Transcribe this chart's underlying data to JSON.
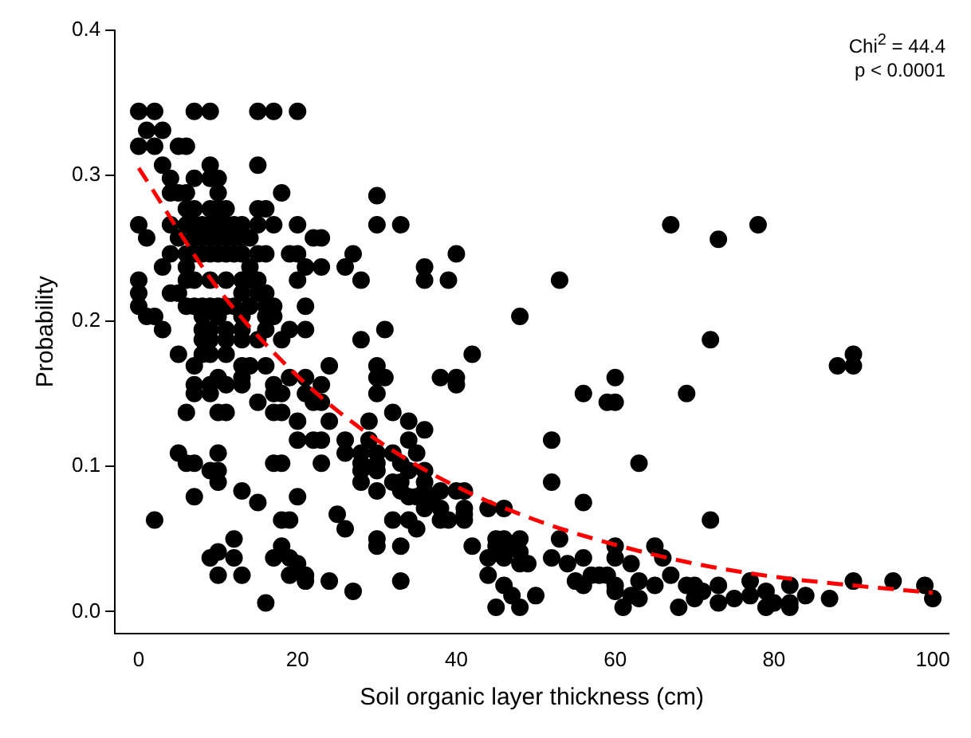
{
  "chart_data": {
    "type": "scatter",
    "xlabel": "Soil organic layer thickness (cm)",
    "ylabel": "Probability",
    "annotations": [
      "Chi$^{2}$ = 44.4",
      "p < 0.0001"
    ],
    "xlim": [
      -3,
      102
    ],
    "ylim": [
      -0.015,
      0.4
    ],
    "xticks": [
      0,
      20,
      40,
      60,
      80,
      100
    ],
    "yticks": [
      {
        "value": 0,
        "label": "0.0"
      },
      0.1,
      0.2,
      0.3,
      0.4
    ],
    "grid": false,
    "legend": false,
    "series": [
      {
        "type": "scatter",
        "color": "#000000",
        "marker": "circle",
        "x": [
          0,
          2,
          7,
          9,
          15,
          17,
          20,
          1,
          3,
          0,
          2,
          5,
          6,
          3,
          9,
          15,
          4,
          7,
          9,
          10,
          4,
          5,
          6,
          10,
          18,
          30,
          6,
          7,
          9,
          10,
          11,
          15,
          16,
          0,
          4,
          6,
          7,
          8,
          9,
          10,
          11,
          12,
          13,
          15,
          17,
          20,
          30,
          33,
          67,
          78,
          1,
          5,
          7,
          8,
          9,
          10,
          11,
          12,
          13,
          14,
          22,
          23,
          73,
          4,
          6,
          7,
          8,
          9,
          10,
          11,
          12,
          13,
          15,
          16,
          19,
          20,
          27,
          40,
          3,
          6,
          14,
          21,
          23,
          26,
          36,
          0,
          6,
          7,
          9,
          11,
          13,
          14,
          15,
          20,
          28,
          36,
          39,
          53,
          0,
          4,
          5,
          13,
          15,
          16,
          0,
          6,
          7,
          8,
          9,
          10,
          11,
          12,
          14,
          16,
          17,
          21,
          1,
          2,
          8,
          10,
          13,
          16,
          17,
          48,
          3,
          8,
          9,
          11,
          13,
          16,
          19,
          21,
          31,
          8,
          9,
          11,
          13,
          15,
          18,
          28,
          72,
          5,
          8,
          9,
          11,
          42,
          90,
          7,
          13,
          14,
          16,
          24,
          30,
          88,
          90,
          10,
          13,
          19,
          21,
          30,
          31,
          38,
          40,
          60,
          7,
          9,
          11,
          13,
          17,
          23,
          40,
          7,
          9,
          17,
          18,
          21,
          30,
          56,
          69,
          15,
          22,
          23,
          59,
          60,
          6,
          10,
          11,
          17,
          18,
          32,
          20,
          24,
          29,
          34,
          36,
          20,
          22,
          23,
          26,
          29,
          34,
          52,
          5,
          10,
          26,
          28,
          30,
          32,
          35,
          6,
          7,
          17,
          18,
          23,
          28,
          30,
          33,
          63,
          9,
          10,
          28,
          30,
          34,
          36,
          10,
          28,
          32,
          33,
          36,
          52,
          13,
          30,
          33,
          36,
          38,
          40,
          41,
          7,
          20,
          34,
          35,
          37,
          15,
          56,
          36,
          38,
          41,
          44,
          46,
          25,
          41,
          2,
          18,
          19,
          32,
          34,
          38,
          39,
          41,
          72,
          26,
          35,
          12,
          30,
          45,
          46,
          48,
          53,
          18,
          30,
          33,
          42,
          45,
          47,
          60,
          65,
          10,
          48,
          9,
          12,
          17,
          19,
          44,
          46,
          52,
          56,
          60,
          66,
          20,
          48,
          49,
          54,
          62,
          10,
          13,
          19,
          21,
          44,
          57,
          58,
          59,
          67,
          21,
          24,
          33,
          55,
          63,
          77,
          90,
          95,
          46,
          56,
          60,
          65,
          69,
          70,
          73,
          82,
          99,
          27,
          60,
          71,
          79,
          47,
          50,
          62,
          77,
          84,
          63,
          70,
          75,
          87,
          100,
          16,
          73,
          80,
          82,
          45,
          48,
          61,
          68,
          79,
          82
        ],
        "values": [
          0.344,
          0.344,
          0.344,
          0.344,
          0.344,
          0.344,
          0.344,
          0.331,
          0.331,
          0.32,
          0.32,
          0.32,
          0.32,
          0.307,
          0.307,
          0.307,
          0.298,
          0.298,
          0.298,
          0.298,
          0.288,
          0.288,
          0.288,
          0.288,
          0.288,
          0.286,
          0.277,
          0.277,
          0.277,
          0.277,
          0.277,
          0.277,
          0.277,
          0.266,
          0.266,
          0.266,
          0.266,
          0.266,
          0.266,
          0.266,
          0.266,
          0.266,
          0.266,
          0.266,
          0.266,
          0.266,
          0.266,
          0.266,
          0.266,
          0.266,
          0.257,
          0.257,
          0.257,
          0.257,
          0.257,
          0.257,
          0.257,
          0.257,
          0.257,
          0.257,
          0.257,
          0.257,
          0.256,
          0.246,
          0.246,
          0.246,
          0.246,
          0.246,
          0.246,
          0.246,
          0.246,
          0.246,
          0.246,
          0.246,
          0.246,
          0.246,
          0.246,
          0.246,
          0.237,
          0.237,
          0.237,
          0.237,
          0.237,
          0.237,
          0.237,
          0.228,
          0.228,
          0.228,
          0.228,
          0.228,
          0.228,
          0.228,
          0.228,
          0.228,
          0.228,
          0.228,
          0.228,
          0.228,
          0.219,
          0.219,
          0.219,
          0.219,
          0.219,
          0.219,
          0.21,
          0.21,
          0.21,
          0.21,
          0.21,
          0.21,
          0.21,
          0.21,
          0.21,
          0.21,
          0.21,
          0.21,
          0.203,
          0.203,
          0.203,
          0.203,
          0.203,
          0.203,
          0.203,
          0.203,
          0.194,
          0.194,
          0.194,
          0.194,
          0.194,
          0.194,
          0.194,
          0.194,
          0.194,
          0.187,
          0.187,
          0.187,
          0.187,
          0.187,
          0.187,
          0.187,
          0.187,
          0.177,
          0.177,
          0.177,
          0.177,
          0.177,
          0.177,
          0.169,
          0.169,
          0.169,
          0.169,
          0.169,
          0.169,
          0.169,
          0.169,
          0.161,
          0.161,
          0.161,
          0.161,
          0.161,
          0.161,
          0.161,
          0.161,
          0.161,
          0.156,
          0.156,
          0.156,
          0.156,
          0.156,
          0.156,
          0.156,
          0.15,
          0.15,
          0.15,
          0.15,
          0.15,
          0.15,
          0.15,
          0.15,
          0.144,
          0.144,
          0.144,
          0.144,
          0.144,
          0.137,
          0.137,
          0.137,
          0.137,
          0.137,
          0.137,
          0.131,
          0.131,
          0.131,
          0.131,
          0.125,
          0.118,
          0.118,
          0.118,
          0.118,
          0.118,
          0.118,
          0.118,
          0.109,
          0.109,
          0.109,
          0.109,
          0.109,
          0.109,
          0.109,
          0.102,
          0.102,
          0.102,
          0.102,
          0.102,
          0.102,
          0.102,
          0.102,
          0.102,
          0.097,
          0.097,
          0.097,
          0.097,
          0.097,
          0.097,
          0.089,
          0.089,
          0.089,
          0.089,
          0.089,
          0.089,
          0.083,
          0.083,
          0.083,
          0.083,
          0.083,
          0.083,
          0.083,
          0.079,
          0.079,
          0.079,
          0.079,
          0.079,
          0.075,
          0.075,
          0.071,
          0.071,
          0.071,
          0.071,
          0.071,
          0.067,
          0.067,
          0.063,
          0.063,
          0.063,
          0.063,
          0.063,
          0.063,
          0.063,
          0.063,
          0.063,
          0.057,
          0.057,
          0.05,
          0.05,
          0.05,
          0.05,
          0.05,
          0.05,
          0.045,
          0.045,
          0.045,
          0.045,
          0.045,
          0.045,
          0.045,
          0.045,
          0.041,
          0.041,
          0.037,
          0.037,
          0.037,
          0.037,
          0.037,
          0.037,
          0.037,
          0.037,
          0.037,
          0.037,
          0.033,
          0.033,
          0.033,
          0.033,
          0.033,
          0.025,
          0.025,
          0.025,
          0.025,
          0.025,
          0.025,
          0.025,
          0.025,
          0.025,
          0.021,
          0.021,
          0.021,
          0.021,
          0.021,
          0.021,
          0.021,
          0.021,
          0.018,
          0.018,
          0.018,
          0.018,
          0.018,
          0.018,
          0.018,
          0.018,
          0.018,
          0.014,
          0.014,
          0.014,
          0.014,
          0.011,
          0.011,
          0.011,
          0.011,
          0.011,
          0.009,
          0.009,
          0.009,
          0.009,
          0.009,
          0.006,
          0.006,
          0.006,
          0.006,
          0.003,
          0.003,
          0.003,
          0.003,
          0.003,
          0.003
        ]
      },
      {
        "type": "line",
        "color": "#ff0000",
        "marker": "none",
        "line_style": "dashed",
        "x": [
          0,
          10,
          20,
          30,
          40,
          50,
          60,
          70,
          80,
          90,
          100
        ],
        "values": [
          0.305,
          0.222,
          0.162,
          0.118,
          0.086,
          0.063,
          0.046,
          0.033,
          0.024,
          0.018,
          0.013
        ]
      }
    ]
  }
}
